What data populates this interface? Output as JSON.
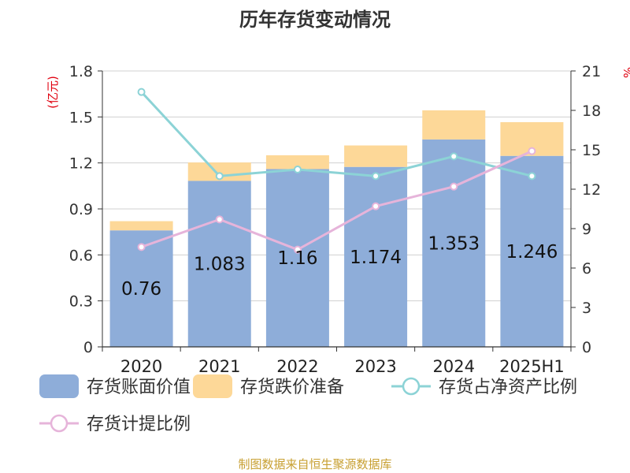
{
  "chart_data": {
    "type": "bar",
    "title": "历年存货变动情况",
    "left_unit": "(亿元)",
    "right_unit": "%",
    "categories": [
      "2020",
      "2021",
      "2022",
      "2023",
      "2024",
      "2025H1"
    ],
    "stacked": true,
    "series": [
      {
        "name": "存货账面价值",
        "type": "bar",
        "axis": "left",
        "color": "#8eadd9",
        "values": [
          0.76,
          1.083,
          1.16,
          1.174,
          1.353,
          1.246
        ],
        "labels": [
          "0.76",
          "1.083",
          "1.16",
          "1.174",
          "1.353",
          "1.246"
        ]
      },
      {
        "name": "存货跌价准备",
        "type": "bar",
        "axis": "left",
        "color": "#fdd898",
        "values": [
          0.06,
          0.12,
          0.09,
          0.14,
          0.19,
          0.22
        ]
      },
      {
        "name": "存货占净资产比例",
        "type": "line",
        "axis": "right",
        "color": "#8cd3d6",
        "values": [
          19.4,
          13.0,
          13.5,
          13.0,
          14.5,
          13.0
        ]
      },
      {
        "name": "存货计提比例",
        "type": "line",
        "axis": "right",
        "color": "#e6b4da",
        "values": [
          7.6,
          9.7,
          7.4,
          10.7,
          12.2,
          14.9
        ]
      }
    ],
    "left_axis": {
      "min": 0,
      "max": 1.8,
      "ticks": [
        "0",
        "0.3",
        "0.6",
        "0.9",
        "1.2",
        "1.5",
        "1.8"
      ]
    },
    "right_axis": {
      "min": 0,
      "max": 21,
      "ticks": [
        "0",
        "3",
        "6",
        "9",
        "12",
        "15",
        "18",
        "21"
      ]
    },
    "grid": true,
    "legend_position": "bottom"
  },
  "footer": {
    "source": "制图数据来自恒生聚源数据库"
  }
}
